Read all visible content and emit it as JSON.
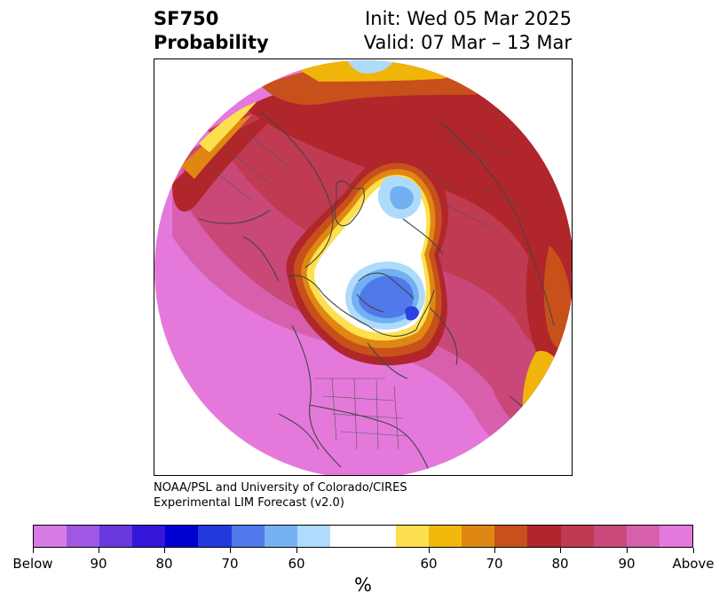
{
  "title": {
    "variable": "SF750",
    "metric": "Probability",
    "init": "Init: Wed 05 Mar 2025",
    "valid": "Valid: 07 Mar – 13 Mar"
  },
  "credit": {
    "line1": "NOAA/PSL and University of Colorado/CIRES",
    "line2": "Experimental LIM Forecast (v2.0)"
  },
  "map": {
    "projection": "north polar stereographic",
    "region": "Northern Hemisphere",
    "colors": {
      "above_max": "#e479db",
      "above_90": "#d75fae",
      "above_85": "#c94877",
      "above_80": "#c03a52",
      "above_75": "#b0262a",
      "above_70": "#c8501b",
      "above_65": "#df8712",
      "above_60": "#f0b50a",
      "above_55": "#fde04f",
      "neutral": "#ffffff",
      "below_55": "#afdbfb",
      "below_60": "#72b1f1",
      "below_65": "#5079ea",
      "below_70": "#2d3fe0"
    }
  },
  "colorbar": {
    "colors": [
      "#d87ae7",
      "#9e58e3",
      "#6a37dd",
      "#3416d9",
      "#0000d1",
      "#2139dd",
      "#4f78ea",
      "#76b2f3",
      "#afdbfd",
      "#ffffff",
      "#ffffff",
      "#fde04f",
      "#f2b80b",
      "#df8712",
      "#c8501b",
      "#b0262a",
      "#c03a52",
      "#c94a7b",
      "#d760ad",
      "#e479db"
    ],
    "tick_labels": [
      "Below",
      "90",
      "80",
      "70",
      "60",
      "60",
      "70",
      "80",
      "90",
      "Above"
    ],
    "unit": "%"
  }
}
